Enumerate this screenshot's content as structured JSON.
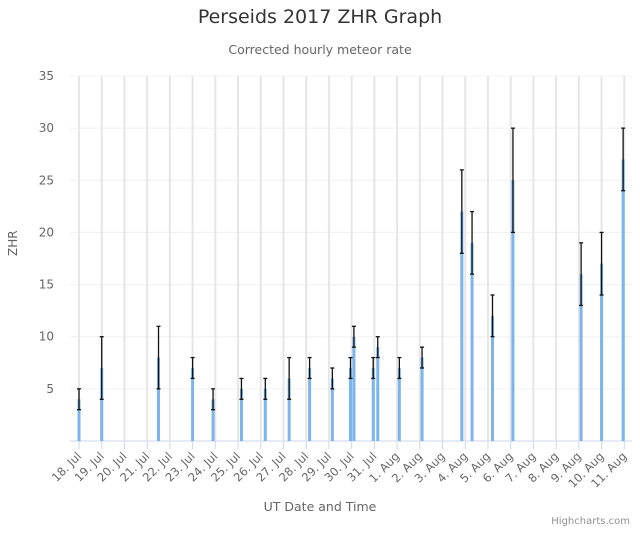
{
  "header": {
    "title": "Perseids 2017 ZHR Graph",
    "subtitle": "Corrected hourly meteor rate"
  },
  "credits": "Highcharts.com",
  "chart_data": {
    "type": "bar",
    "title": "Perseids 2017 ZHR Graph",
    "subtitle": "Corrected hourly meteor rate",
    "xlabel": "UT Date and Time",
    "ylabel": "ZHR",
    "ylim": [
      0,
      35
    ],
    "yticks": [
      5,
      10,
      15,
      20,
      25,
      30,
      35
    ],
    "grid": true,
    "legend": "none",
    "categories": [
      "18. Jul",
      "19. Jul",
      "20. Jul",
      "21. Jul",
      "22. Jul",
      "23. Jul",
      "24. Jul",
      "25. Jul",
      "26. Jul",
      "27. Jul",
      "28. Jul",
      "29. Jul",
      "30. Jul",
      "31. Jul",
      "1. Aug",
      "2. Aug",
      "3. Aug",
      "4. Aug",
      "5. Aug",
      "6. Aug",
      "7. Aug",
      "8. Aug",
      "9. Aug",
      "10. Aug",
      "11. Aug"
    ],
    "series": [
      {
        "name": "ZHR",
        "color": "#7cb5ec",
        "points": [
          {
            "x": 0.0,
            "value": 4,
            "low": 3,
            "high": 5
          },
          {
            "x": 1.0,
            "value": 7,
            "low": 4,
            "high": 10
          },
          {
            "x": 3.5,
            "value": 8,
            "low": 5,
            "high": 11
          },
          {
            "x": 5.0,
            "value": 7,
            "low": 6,
            "high": 8
          },
          {
            "x": 5.9,
            "value": 4,
            "low": 3,
            "high": 5
          },
          {
            "x": 7.15,
            "value": 5,
            "low": 4,
            "high": 6
          },
          {
            "x": 8.2,
            "value": 5,
            "low": 4,
            "high": 6
          },
          {
            "x": 9.25,
            "value": 6,
            "low": 4,
            "high": 8
          },
          {
            "x": 10.15,
            "value": 7,
            "low": 6,
            "high": 8
          },
          {
            "x": 11.15,
            "value": 6,
            "low": 5,
            "high": 7
          },
          {
            "x": 11.95,
            "value": 7,
            "low": 6,
            "high": 8
          },
          {
            "x": 12.1,
            "value": 10,
            "low": 9,
            "high": 11
          },
          {
            "x": 12.95,
            "value": 7,
            "low": 6,
            "high": 8
          },
          {
            "x": 13.15,
            "value": 9,
            "low": 8,
            "high": 10
          },
          {
            "x": 14.1,
            "value": 7,
            "low": 6,
            "high": 8
          },
          {
            "x": 15.1,
            "value": 8,
            "low": 7,
            "high": 9
          },
          {
            "x": 16.85,
            "value": 22,
            "low": 18,
            "high": 26
          },
          {
            "x": 17.3,
            "value": 19,
            "low": 16,
            "high": 22
          },
          {
            "x": 18.2,
            "value": 12,
            "low": 10,
            "high": 14
          },
          {
            "x": 19.1,
            "value": 25,
            "low": 20,
            "high": 30
          },
          {
            "x": 22.1,
            "value": 16,
            "low": 13,
            "high": 19
          },
          {
            "x": 23.0,
            "value": 17,
            "low": 14,
            "high": 20
          },
          {
            "x": 23.95,
            "value": 27,
            "low": 24,
            "high": 30
          }
        ]
      }
    ],
    "error_bar_color": "#000000"
  },
  "colors": {
    "bar": "#7cb5ec",
    "error": "#111111",
    "grid": "#e6e6e6",
    "axis_text": "#666666"
  }
}
